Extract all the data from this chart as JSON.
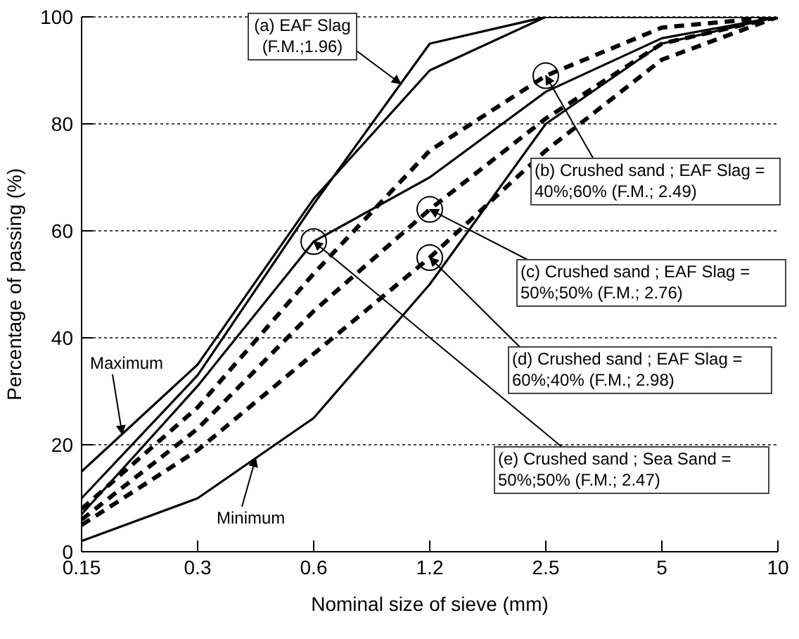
{
  "chart_data": {
    "type": "line",
    "xlabel": "Nominal size of sieve (mm)",
    "ylabel": "Percentage of passing (%)",
    "categories": [
      "0.15",
      "0.3",
      "0.6",
      "1.2",
      "2.5",
      "5",
      "10"
    ],
    "series": [
      {
        "name": "Maximum",
        "color": "#000000",
        "values": [
          15,
          35,
          66,
          90,
          100,
          100,
          100
        ]
      },
      {
        "color": "#000000",
        "values": [
          10,
          33,
          65,
          95,
          100,
          100,
          100
        ]
      },
      {
        "color": "#000000",
        "values": [
          7,
          31,
          58,
          70,
          86,
          96,
          100
        ]
      },
      {
        "color": "#000000",
        "line_style": "dashed",
        "values": [
          8,
          27,
          52,
          75,
          89,
          98,
          100
        ]
      },
      {
        "color": "#000000",
        "line_style": "dashed",
        "values": [
          6,
          23,
          45,
          64,
          81,
          95,
          100
        ]
      },
      {
        "color": "#000000",
        "line_style": "dashed",
        "values": [
          5,
          19,
          37,
          55,
          75,
          92,
          100
        ]
      },
      {
        "name": "Minimum",
        "color": "#000000",
        "values": [
          2,
          10,
          25,
          50,
          80,
          95,
          100
        ]
      }
    ],
    "annotations": [
      "(a) EAF Slag (F.M.;1.96)",
      {
        "text": "(b) Crushed sand ; EAF Slag = 40%;60% (F.M.; 2.49)",
        "x": "2.5",
        "y": 89
      },
      {
        "text": "(c) Crushed sand ; EAF Slag = 50%;50% (F.M.; 2.76)",
        "x": "1.2",
        "y": 64
      },
      {
        "text": "(d) Crushed sand ; EAF Slag = 60%;40% (F.M.; 2.98)",
        "x": "1.2",
        "y": 55
      },
      {
        "text": "(e) Crushed sand ; Sea Sand = 50%;50% (F.M.; 2.47)",
        "x": "0.6",
        "y": 58
      }
    ],
    "ylim": [
      0,
      100
    ],
    "yticks": [
      0,
      20,
      40,
      60,
      80,
      100
    ],
    "grid": "y",
    "legend": false,
    "marker": "none",
    "line_style": "solid"
  }
}
